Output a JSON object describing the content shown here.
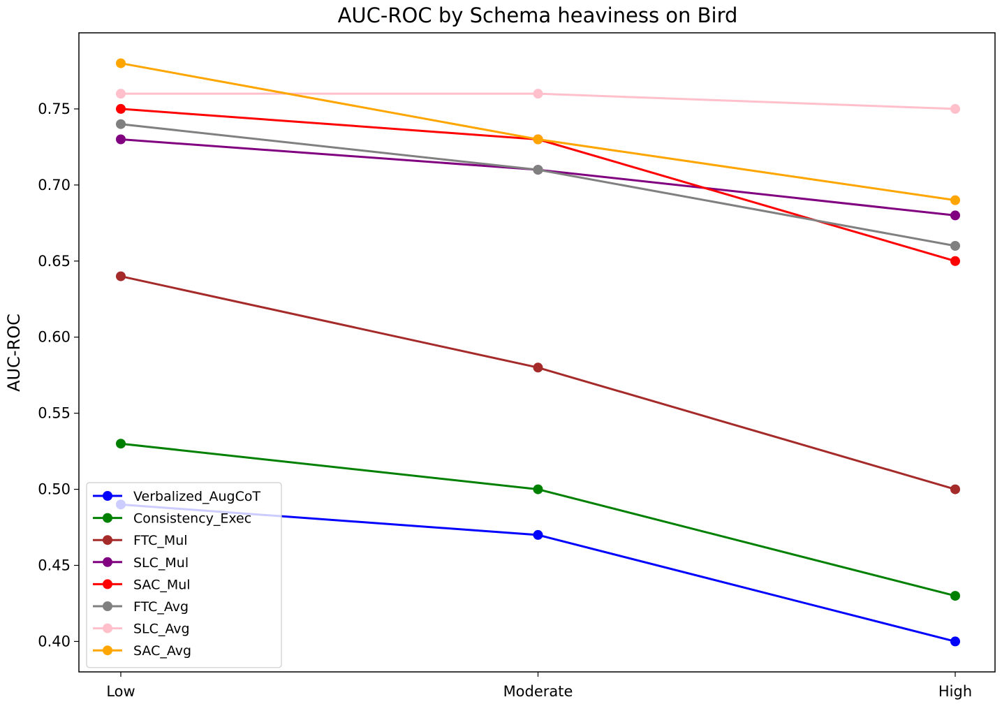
{
  "chart_data": {
    "type": "line",
    "title": "AUC-ROC by Schema heaviness on Bird",
    "xlabel": "",
    "ylabel": "AUC-ROC",
    "categories": [
      "Low",
      "Moderate",
      "High"
    ],
    "ylim": [
      0.38,
      0.8
    ],
    "yticks": [
      "0.40",
      "0.45",
      "0.50",
      "0.55",
      "0.60",
      "0.65",
      "0.70",
      "0.75"
    ],
    "grid": false,
    "legend_position": "lower-left",
    "series": [
      {
        "name": "Verbalized_AugCoT",
        "color": "#0000ff",
        "values": [
          0.49,
          0.47,
          0.4
        ]
      },
      {
        "name": "Consistency_Exec",
        "color": "#008000",
        "values": [
          0.53,
          0.5,
          0.43
        ]
      },
      {
        "name": "FTC_Mul",
        "color": "#a52a2a",
        "values": [
          0.64,
          0.58,
          0.5
        ]
      },
      {
        "name": "SLC_Mul",
        "color": "#800080",
        "values": [
          0.73,
          0.71,
          0.68
        ]
      },
      {
        "name": "SAC_Mul",
        "color": "#ff0000",
        "values": [
          0.75,
          0.73,
          0.65
        ]
      },
      {
        "name": "FTC_Avg",
        "color": "#808080",
        "values": [
          0.74,
          0.71,
          0.66
        ]
      },
      {
        "name": "SLC_Avg",
        "color": "#ffc0cb",
        "values": [
          0.76,
          0.76,
          0.75
        ]
      },
      {
        "name": "SAC_Avg",
        "color": "#ffa500",
        "values": [
          0.78,
          0.73,
          0.69
        ]
      }
    ]
  }
}
